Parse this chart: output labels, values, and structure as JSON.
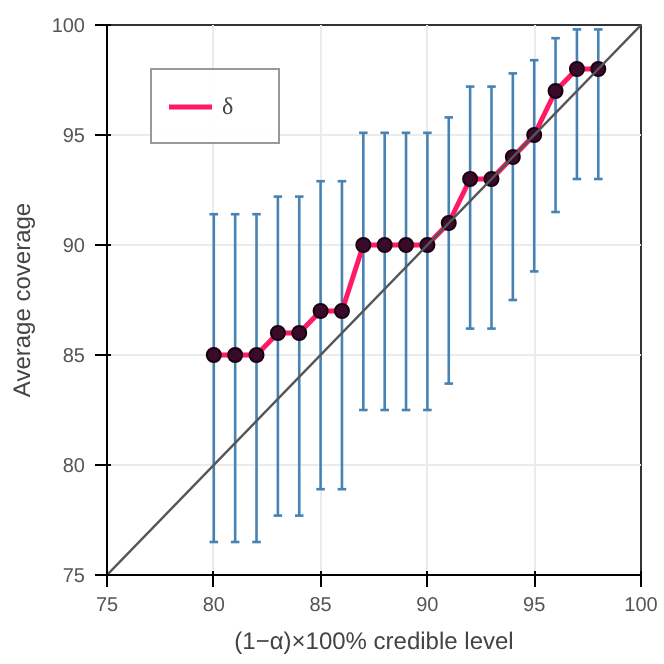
{
  "chart_data": {
    "type": "line",
    "xlabel": "(1−α)×100% credible level",
    "ylabel": "Average coverage",
    "xlim": [
      75,
      100
    ],
    "ylim": [
      75,
      100
    ],
    "xticks": [
      75,
      80,
      85,
      90,
      95,
      100
    ],
    "yticks": [
      75,
      80,
      85,
      90,
      95,
      100
    ],
    "grid": true,
    "legend": "top left",
    "marker": "circle",
    "series": [
      {
        "name": "δ",
        "color": "#ff1a66",
        "x": [
          80,
          81,
          82,
          83,
          84,
          85,
          86,
          87,
          88,
          89,
          90,
          91,
          92,
          93,
          94,
          95,
          96,
          97,
          98
        ],
        "values": [
          85,
          85,
          85,
          86,
          86,
          87,
          87,
          90,
          90,
          90,
          90,
          91,
          93,
          93,
          94,
          95,
          97,
          98,
          98
        ],
        "errors": [
          [
            76.5,
            91.4
          ],
          [
            76.5,
            91.4
          ],
          [
            76.5,
            91.4
          ],
          [
            77.7,
            92.2
          ],
          [
            77.7,
            92.2
          ],
          [
            78.9,
            92.9
          ],
          [
            78.9,
            92.9
          ],
          [
            82.5,
            95.1
          ],
          [
            82.5,
            95.1
          ],
          [
            82.5,
            95.1
          ],
          [
            82.5,
            95.1
          ],
          [
            83.7,
            95.8
          ],
          [
            86.2,
            97.2
          ],
          [
            86.2,
            97.2
          ],
          [
            87.5,
            97.8
          ],
          [
            88.8,
            98.4
          ],
          [
            91.5,
            99.4
          ],
          [
            93.0,
            99.8
          ],
          [
            93.0,
            99.8
          ]
        ]
      },
      {
        "color": "#555555",
        "x": [
          75,
          100
        ],
        "values": [
          75,
          100
        ],
        "marker": "none"
      }
    ]
  }
}
